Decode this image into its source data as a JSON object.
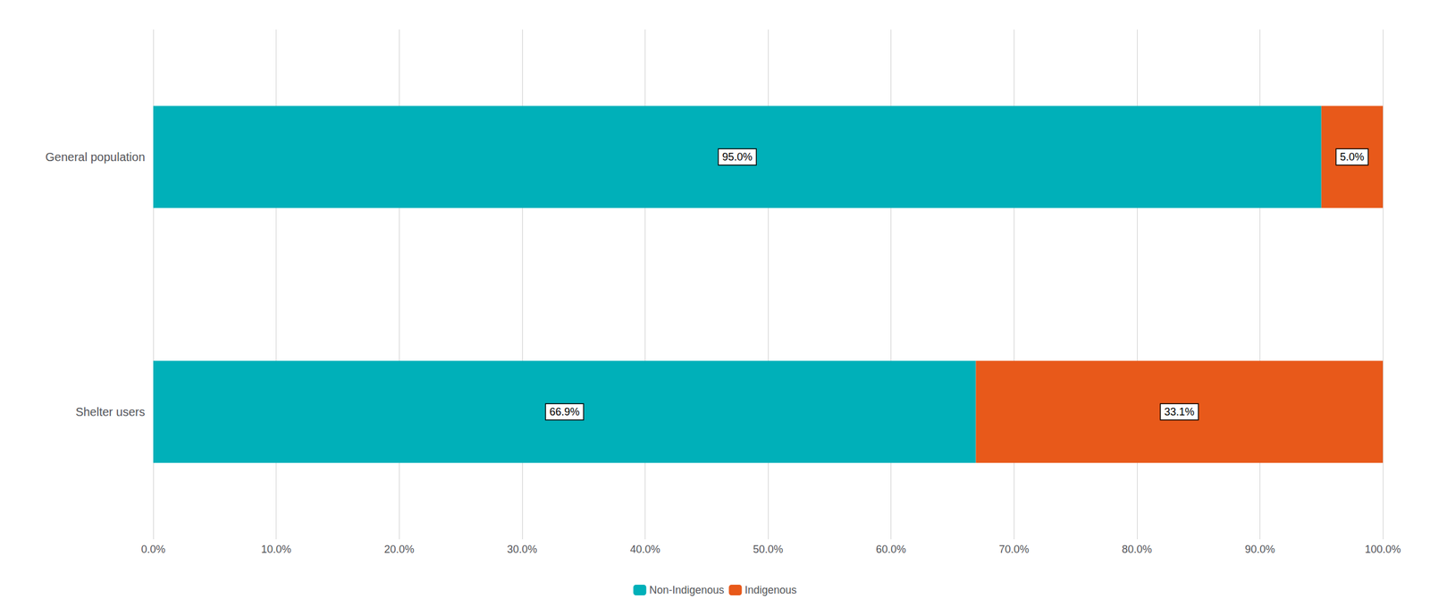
{
  "chart_data": {
    "type": "bar",
    "orientation": "horizontal",
    "stacked": true,
    "data_labels": true,
    "grid": true,
    "legend": "bottom",
    "categories": [
      "General population",
      "Shelter users"
    ],
    "series": [
      {
        "name": "Non-Indigenous",
        "color": "#00B0B9",
        "values": [
          95.0,
          66.9
        ],
        "value_labels": [
          "95.0%",
          "66.9%"
        ]
      },
      {
        "name": "Indigenous",
        "color": "#E8591A",
        "values": [
          5.0,
          33.1
        ],
        "value_labels": [
          "5.0%",
          "33.1%"
        ]
      }
    ],
    "xlim": [
      0,
      100
    ],
    "xticks": [
      {
        "value": 0,
        "label": "0.0%"
      },
      {
        "value": 10,
        "label": "10.0%"
      },
      {
        "value": 20,
        "label": "20.0%"
      },
      {
        "value": 30,
        "label": "30.0%"
      },
      {
        "value": 40,
        "label": "40.0%"
      },
      {
        "value": 50,
        "label": "50.0%"
      },
      {
        "value": 60,
        "label": "60.0%"
      },
      {
        "value": 70,
        "label": "70.0%"
      },
      {
        "value": 80,
        "label": "80.0%"
      },
      {
        "value": 90,
        "label": "90.0%"
      },
      {
        "value": 100,
        "label": "100.0%"
      }
    ]
  }
}
